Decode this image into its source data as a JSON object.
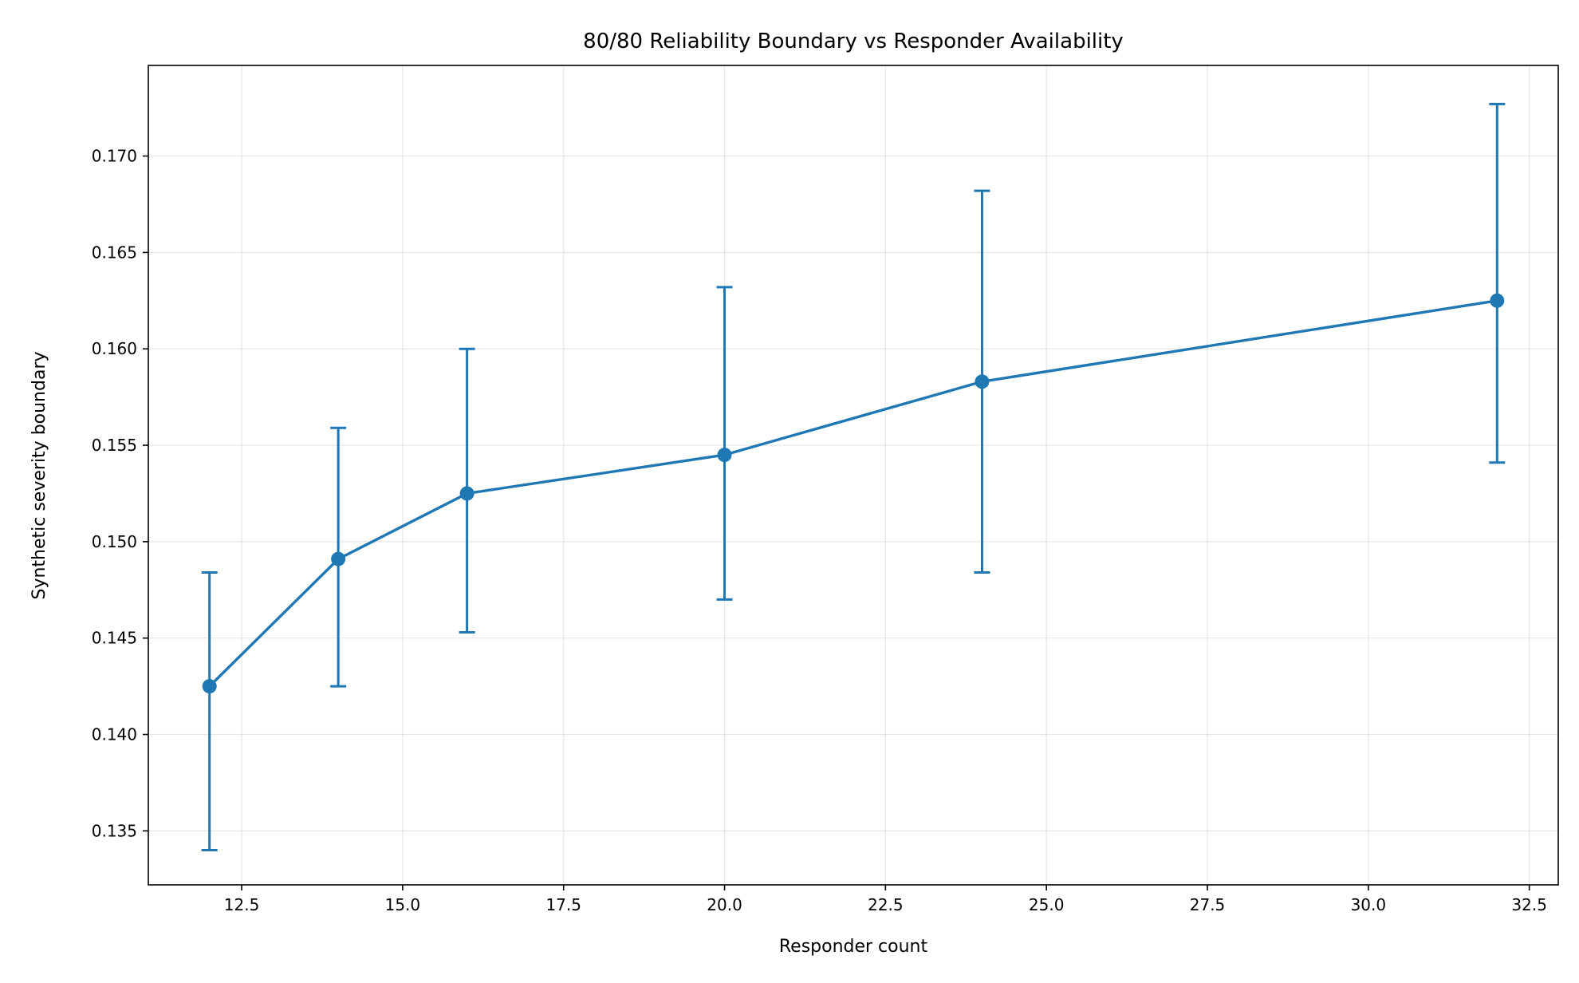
{
  "chart_data": {
    "type": "line",
    "title": "80/80 Reliability Boundary vs Responder Availability",
    "xlabel": "Responder count",
    "ylabel": "Synthetic severity boundary",
    "xlim": [
      11.05,
      32.95
    ],
    "ylim": [
      0.1322,
      0.1747
    ],
    "xticks": [
      12.5,
      15.0,
      17.5,
      20.0,
      22.5,
      25.0,
      27.5,
      30.0,
      32.5
    ],
    "xtick_labels": [
      "12.5",
      "15.0",
      "17.5",
      "20.0",
      "22.5",
      "25.0",
      "27.5",
      "30.0",
      "32.5"
    ],
    "yticks": [
      0.135,
      0.14,
      0.145,
      0.15,
      0.155,
      0.16,
      0.165,
      0.17
    ],
    "ytick_labels": [
      "0.135",
      "0.140",
      "0.145",
      "0.150",
      "0.155",
      "0.160",
      "0.165",
      "0.170"
    ],
    "grid": true,
    "color": "#1f77b4",
    "series": [
      {
        "x": [
          12,
          14,
          16,
          20,
          24,
          32
        ],
        "y": [
          0.1425,
          0.1491,
          0.1525,
          0.1545,
          0.1583,
          0.1625
        ],
        "err_low": [
          0.134,
          0.1425,
          0.1453,
          0.147,
          0.1484,
          0.1541
        ],
        "err_high": [
          0.1484,
          0.1559,
          0.16,
          0.1632,
          0.1682,
          0.1727
        ]
      }
    ]
  }
}
